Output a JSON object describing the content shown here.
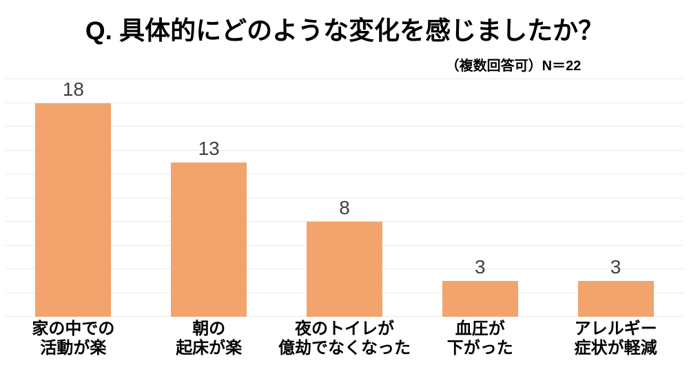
{
  "title": "Q. 具体的にどのような変化を感じましたか？",
  "subtitle": "（複数回答可）N＝22",
  "colors": {
    "background": "#FFFFFF",
    "bar": "#F2A46C",
    "gridline": "#E9E9E9",
    "value_label": "#404040",
    "title_text": "#000000",
    "category_label": "#000000"
  },
  "chart_data": {
    "type": "bar",
    "title": "Q. 具体的にどのような変化を感じましたか？",
    "subtitle": "（複数回答可）N＝22",
    "sample_size": "N＝22",
    "categories": [
      "家の中での\n活動が楽",
      "朝の\n起床が楽",
      "夜のトイレが\n億劫でなくなった",
      "血圧が\n下がった",
      "アレルギー\n症状が軽減"
    ],
    "values": [
      18,
      13,
      8,
      3,
      3
    ],
    "xlabel": "",
    "ylabel": "",
    "ylim": [
      0,
      20
    ],
    "gridline_step": 2,
    "grid": true,
    "legend": "none",
    "bar_color": "#F2A46C"
  }
}
